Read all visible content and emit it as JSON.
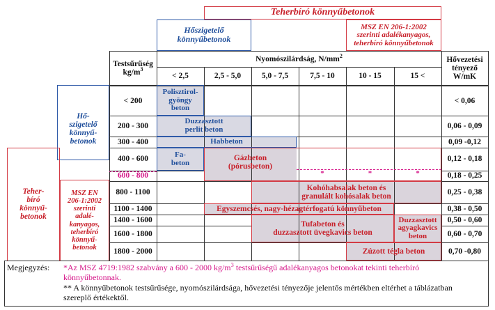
{
  "header": {
    "teherbiro_title": "Teherbíró könnyűbetonok",
    "hoszigetelo_title_line1": "Hőszigetelő",
    "hoszigetelo_title_line2": "könnyűbetonok",
    "msz_box_line1": "MSZ EN 206-1:2002",
    "msz_box_line2": "szerinti adalékanyagos,",
    "msz_box_line3": "teherbíró könnyűbetonok"
  },
  "table": {
    "density_header_line1": "Testsűrűség",
    "density_header_line2": "kg/m",
    "density_header_sup": "3",
    "strength_header": "Nyomószilárdság, N/mm",
    "strength_header_sup": "2",
    "conductivity_header_line1": "Hővezetési",
    "conductivity_header_line2": "tényező",
    "conductivity_header_line3": "W/mK",
    "strength_classes": [
      "< 2,5",
      "2,5 - 5,0",
      "5,0 - 7,5",
      "7,5 - 10",
      "10 - 15",
      "15 <"
    ],
    "density_rows": [
      "< 200",
      "200 - 300",
      "300 - 400",
      "400 - 600",
      "600 - 800",
      "800 - 1100",
      "1100 - 1400",
      "1400 - 1600",
      "1600 - 1800",
      "1800 - 2000"
    ],
    "conductivity_rows": [
      "< 0,06",
      "0,06 - 0,09",
      "0,09 -0,12",
      "0,12 - 0,18",
      "0,18 - 0,25",
      "0,25 - 0,38",
      "0,38 - 0,50",
      "0,50 - 0,60",
      "0,60 - 0,70",
      "0,70 -0,80"
    ],
    "side_hoszigetelo": [
      "Hő-",
      "szigetelő",
      "könnyű-",
      "betonok"
    ],
    "side_teherbiro": [
      "Teher-",
      "bíró",
      "könnyű-",
      "betonok"
    ],
    "side_msz": [
      "MSZ EN",
      "206-1:2002",
      "szerinti",
      "adalé-",
      "kanyagos,",
      "teherbíró",
      "könnyű-",
      "betonok"
    ]
  },
  "materials": {
    "polisztirol": [
      "Polisztirol-",
      "gyöngy",
      "beton"
    ],
    "perlit": [
      "Duzzasztott",
      "perlit beton"
    ],
    "habbeton": "Habbeton",
    "fabeton": [
      "Fa-",
      "beton"
    ],
    "gazbeton": [
      "Gázbeton",
      "(pórusbeton)"
    ],
    "star_marker": "*",
    "kohohabsalak": [
      "Kohóhabsalak beton és",
      "granulált kohósalak beton"
    ],
    "egyszemcses": "Egyszemcsés, nagy-hézagtérfogatú könnyűbeton",
    "tufabeton": [
      "Tufabeton és",
      "duzzasztott üvegkavics beton"
    ],
    "agyagkavics": [
      "Duzzasztott",
      "agyagkavics",
      "beton"
    ],
    "zuzott": "Zúzott tégla beton"
  },
  "notes": {
    "label": "Megjegyzés:",
    "note1_a": "*Az MSZ 4719:1982 szabvány a 600 - 2000 kg/m",
    "note1_sup": "3",
    "note1_b": " testsűrűségű adalékanyagos betonokat tekinti teherbíró",
    "note1_c": "könnyűbetonnak.",
    "note2_a": "** A könnyűbetonok testsűrűsége, nyomószilárdsága, hővezetési tényezője jelentős mértékben eltérhet a táblázatban",
    "note2_b": "szereplő értékektől."
  },
  "colors": {
    "red": "#c8202a",
    "blue": "#1f4e9b",
    "pink": "#d6198a",
    "grey_fill": "#d9d9e3"
  }
}
